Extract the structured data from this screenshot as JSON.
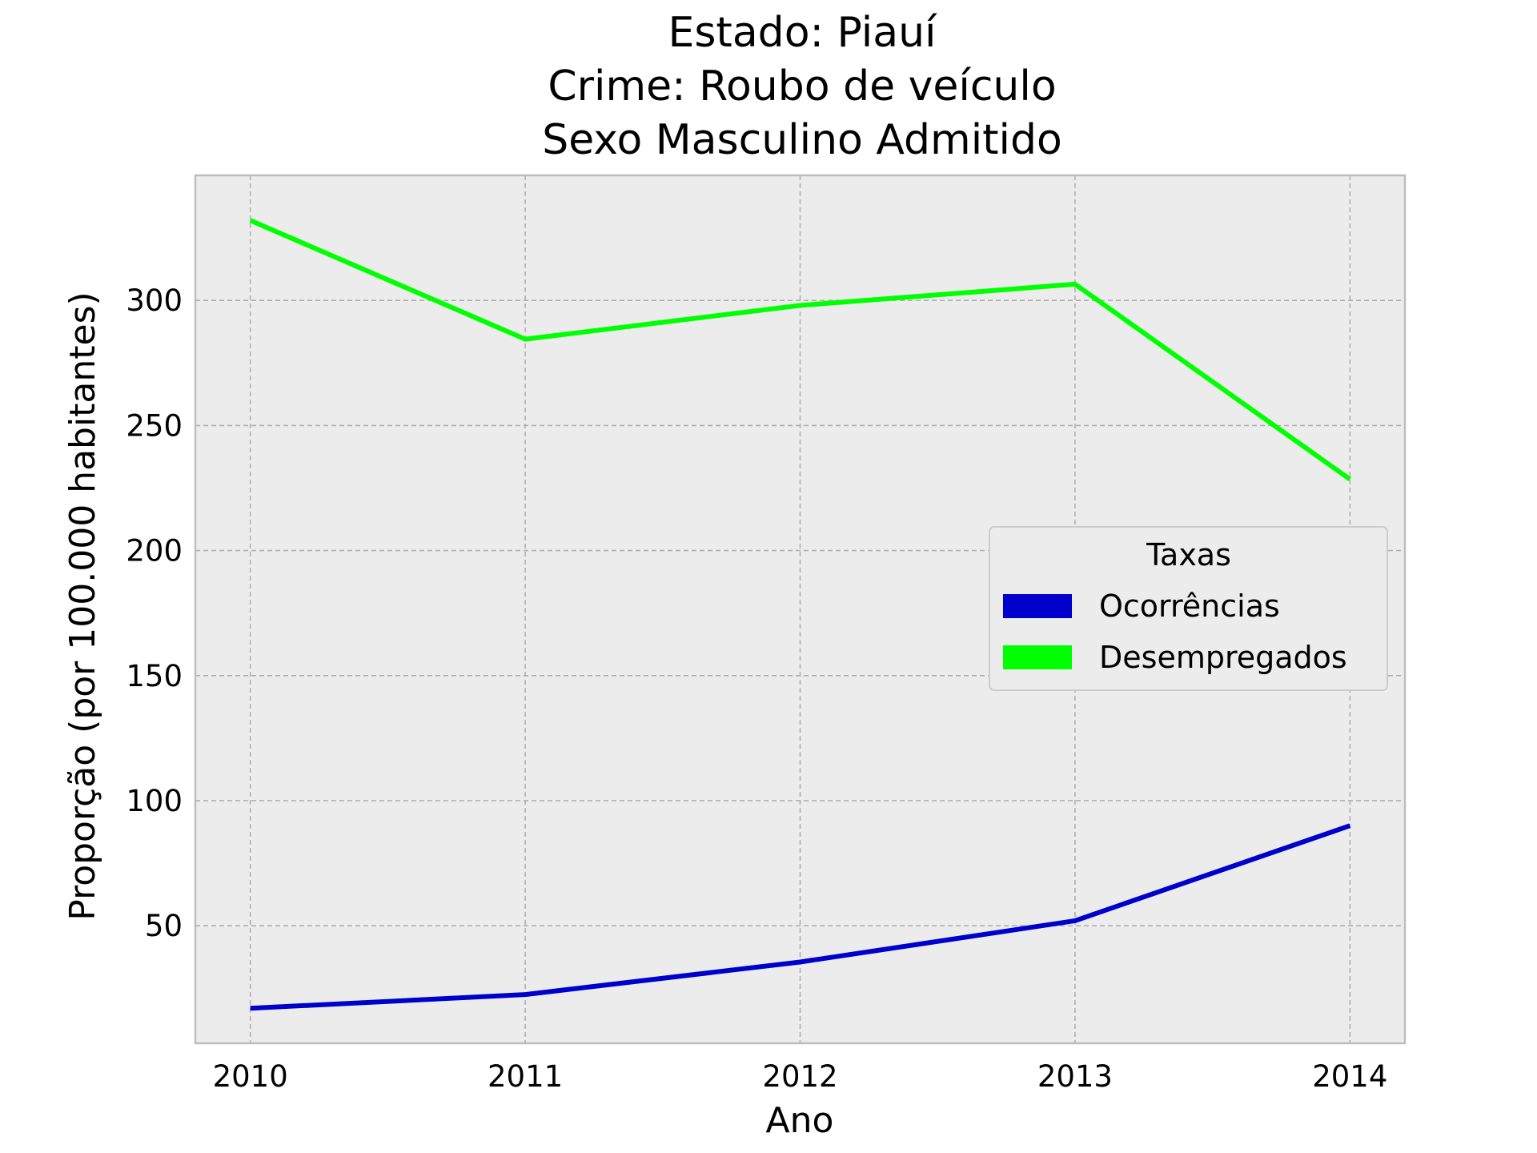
{
  "chart_data": {
    "type": "line",
    "title_lines": [
      "Estado: Piauí",
      "Crime: Roubo de veículo",
      "Sexo  Masculino   Admitido"
    ],
    "xlabel": "Ano",
    "ylabel": "Proporção (por 100.000 habitantes)",
    "x": [
      2010,
      2011,
      2012,
      2013,
      2014
    ],
    "xticks": [
      "2010",
      "2011",
      "2012",
      "2013",
      "2014"
    ],
    "yticks": [
      50,
      100,
      150,
      200,
      250,
      300
    ],
    "ytick_labels": [
      "50",
      "100",
      "150",
      "200",
      "250",
      "300"
    ],
    "xlim": [
      2009.8,
      2014.2
    ],
    "ylim": [
      3,
      350
    ],
    "grid": true,
    "legend": {
      "title": "Taxas",
      "placement": "center-right"
    },
    "series": [
      {
        "name": "Ocorrências",
        "color": "#0000cc",
        "values": [
          17,
          22.5,
          35.5,
          52,
          90
        ]
      },
      {
        "name": "Desempregados",
        "color": "#00ff00",
        "values": [
          332,
          284.5,
          298,
          306.5,
          228.5
        ]
      }
    ],
    "colors": {
      "plot_background": "#ececec",
      "frame": "#bcbcbc"
    }
  }
}
